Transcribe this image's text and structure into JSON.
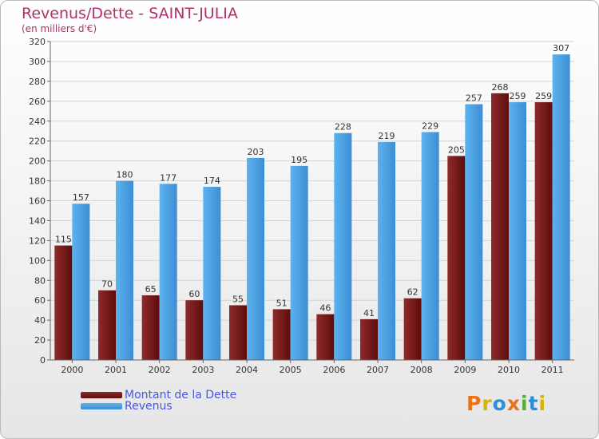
{
  "title": "Revenus/Dette - SAINT-JULIA",
  "subtitle": "(en milliers d'€)",
  "brand": "Proxiti",
  "colors": {
    "series1": "#7a1a1a",
    "series2": "#4aa3e6",
    "grid": "#d4d4d4"
  },
  "chart_data": {
    "type": "bar",
    "categories": [
      "2000",
      "2001",
      "2002",
      "2003",
      "2004",
      "2005",
      "2006",
      "2007",
      "2008",
      "2009",
      "2010",
      "2011"
    ],
    "series": [
      {
        "name": "Montant de la Dette",
        "values": [
          115,
          70,
          65,
          60,
          55,
          51,
          46,
          41,
          62,
          205,
          268,
          259
        ]
      },
      {
        "name": "Revenus",
        "values": [
          157,
          180,
          177,
          174,
          203,
          195,
          228,
          219,
          229,
          257,
          259,
          307
        ]
      }
    ],
    "ylim": [
      0,
      320
    ],
    "yticks": [
      0,
      20,
      40,
      60,
      80,
      100,
      120,
      140,
      160,
      180,
      200,
      220,
      240,
      260,
      280,
      300,
      320
    ],
    "grid": true,
    "legend": "bottom-left"
  }
}
